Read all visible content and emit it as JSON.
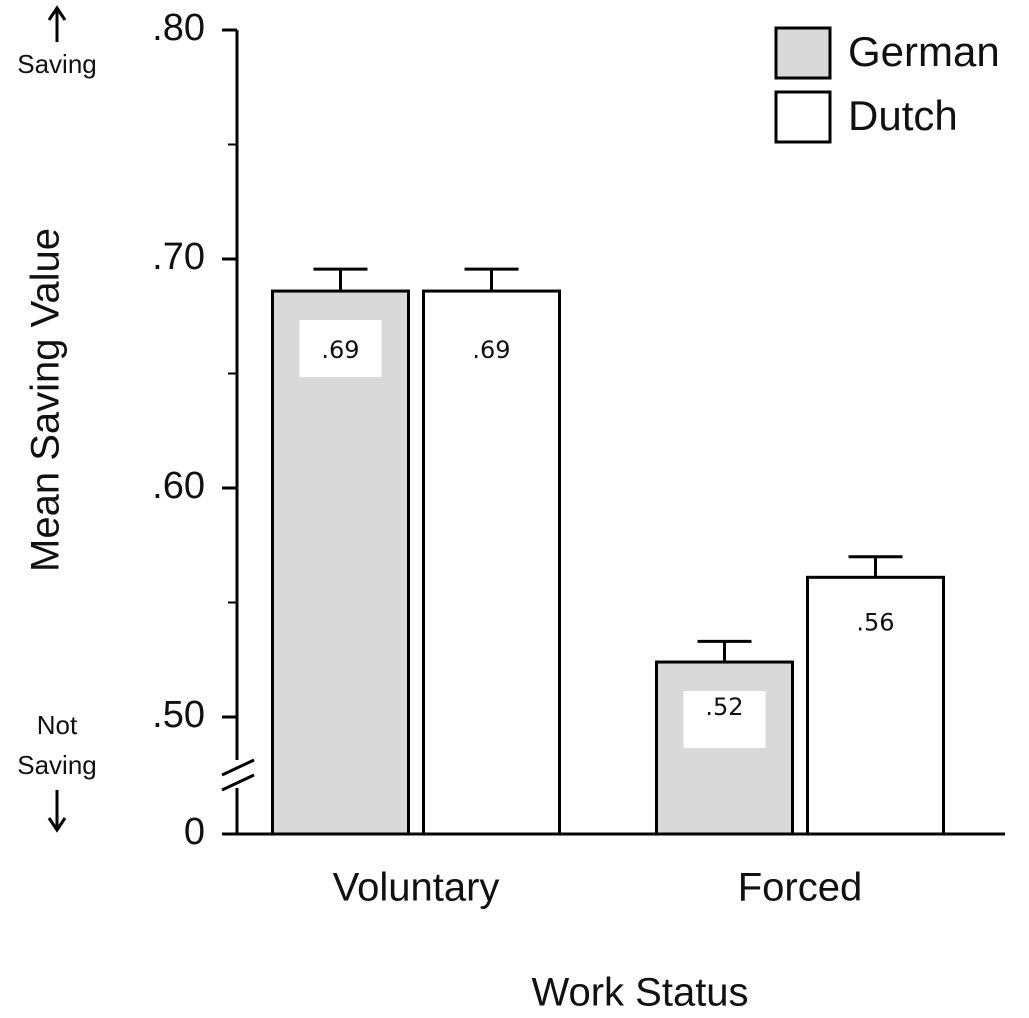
{
  "chart_data": {
    "type": "bar",
    "y_label": "Mean Saving Value",
    "x_label": "Work Status",
    "annotations": {
      "top": [
        "Saving"
      ],
      "bottom": [
        "Not",
        "Saving"
      ]
    },
    "categories": [
      "Voluntary",
      "Forced"
    ],
    "series": [
      {
        "name": "German",
        "color": "#d9d9d9",
        "values": [
          0.686,
          0.524
        ],
        "value_labels": [
          ".69",
          ".52"
        ],
        "errors": [
          0.0096,
          0.009
        ]
      },
      {
        "name": "Dutch",
        "color": "#ffffff",
        "values": [
          0.686,
          0.561
        ],
        "value_labels": [
          ".69",
          ".56"
        ],
        "errors": [
          0.0096,
          0.009
        ]
      }
    ],
    "ylim": [
      0,
      0.8
    ],
    "axis_break": [
      0,
      0.5
    ],
    "yticks": [
      {
        "value": 0,
        "label": "0"
      },
      {
        "value": 0.5,
        "label": ".50"
      },
      {
        "value": 0.6,
        "label": ".60"
      },
      {
        "value": 0.7,
        "label": ".70"
      },
      {
        "value": 0.8,
        "label": ".80"
      }
    ],
    "minor_yticks": [
      0.55,
      0.65,
      0.75
    ],
    "legend": "top-right"
  }
}
